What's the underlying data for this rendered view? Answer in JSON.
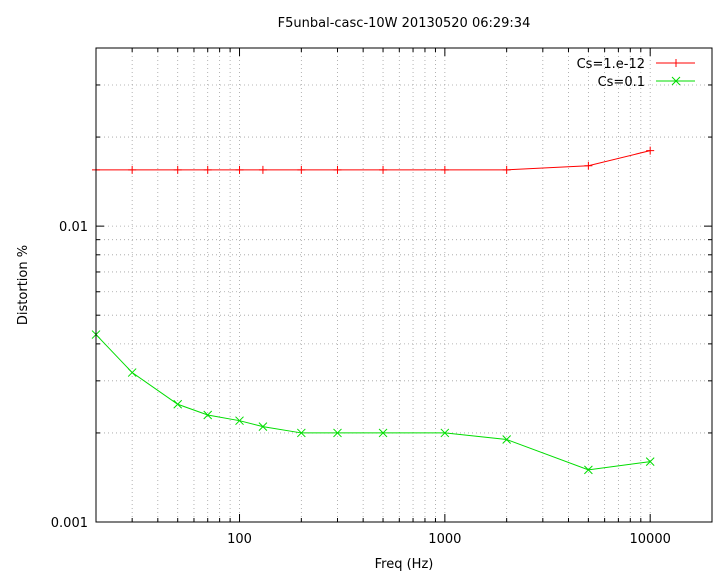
{
  "chart_data": {
    "type": "line",
    "title": "F5unbal-casc-10W 20130520 06:29:34",
    "xlabel": "Freq (Hz)",
    "ylabel": "Distortion %",
    "x_scale": "log",
    "y_scale": "log",
    "xlim": [
      20,
      20000
    ],
    "ylim": [
      0.001,
      0.04
    ],
    "x_tick_labels": [
      "100",
      "1000",
      "10000"
    ],
    "x_tick_values": [
      100,
      1000,
      10000
    ],
    "y_tick_labels": [
      "0.01",
      "0.001"
    ],
    "y_tick_values": [
      0.01,
      0.001
    ],
    "grid": true,
    "legend_position": "top-right",
    "series": [
      {
        "name": "Cs=1.e-12",
        "color": "#ff0000",
        "marker": "plus",
        "x": [
          20,
          30,
          50,
          70,
          100,
          130,
          200,
          300,
          500,
          1000,
          2000,
          5000,
          10000
        ],
        "y": [
          0.0155,
          0.0155,
          0.0155,
          0.0155,
          0.0155,
          0.0155,
          0.0155,
          0.0155,
          0.0155,
          0.0155,
          0.0155,
          0.016,
          0.018
        ]
      },
      {
        "name": "Cs=0.1",
        "color": "#00dd00",
        "marker": "x",
        "x": [
          20,
          30,
          50,
          70,
          100,
          130,
          200,
          300,
          500,
          1000,
          2000,
          5000,
          10000
        ],
        "y": [
          0.0043,
          0.0032,
          0.0025,
          0.0023,
          0.0022,
          0.0021,
          0.002,
          0.002,
          0.002,
          0.002,
          0.0019,
          0.0015,
          0.0016
        ]
      }
    ]
  }
}
